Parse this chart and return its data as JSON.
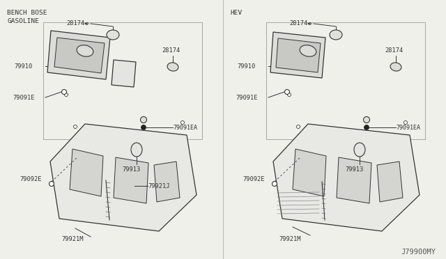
{
  "bg_color": "#f0f0eb",
  "border_color": "#888888",
  "line_color": "#333333",
  "text_color": "#333333",
  "title_left": "BENCH BOSE\nGASOLINE",
  "title_right": "HEV",
  "watermark": "J79900MY",
  "shelf_fc": "#e8e8e4",
  "cutout_fc": "#d4d4d0",
  "amp_fc": "#dcdcd8",
  "amp_inner_fc": "#c8c8c4"
}
